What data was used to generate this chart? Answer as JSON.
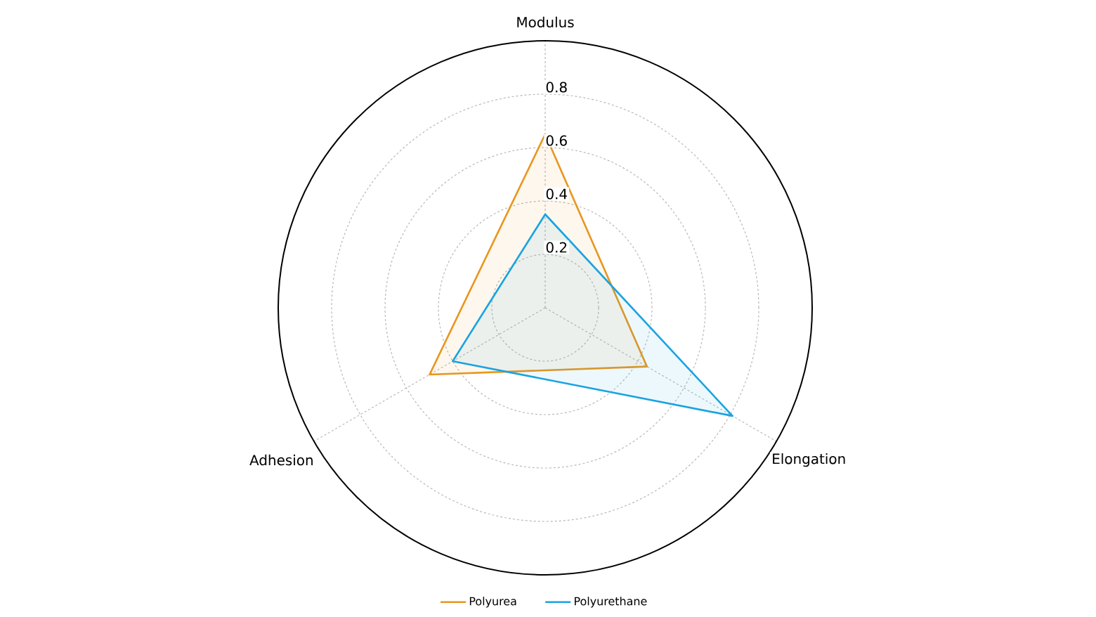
{
  "chart_data": {
    "type": "radar",
    "categories": [
      "Modulus",
      "Elongation",
      "Adhesion"
    ],
    "series": [
      {
        "name": "Polyurea",
        "color": "#e8961e",
        "values": [
          0.65,
          0.44,
          0.5
        ]
      },
      {
        "name": "Polyurethane",
        "color": "#1aa3e0",
        "values": [
          0.35,
          0.81,
          0.4
        ]
      }
    ],
    "ylim": [
      0,
      1
    ],
    "yticks": [
      0.2,
      0.4,
      0.6,
      0.8
    ],
    "grid": true,
    "legend": "bottom"
  }
}
